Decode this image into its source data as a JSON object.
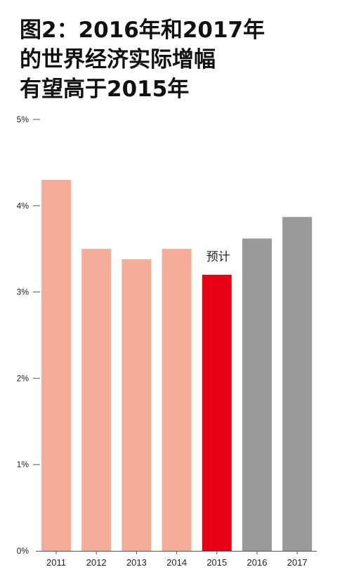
{
  "title_lines": [
    "图2：2016年和2017年",
    "的世界经济实际增幅",
    "有望高于2015年"
  ],
  "chart_data": {
    "type": "bar",
    "title": "图2：2016年和2017年的世界经济实际增幅有望高于2015年",
    "categories": [
      "2011",
      "2012",
      "2013",
      "2014",
      "2015",
      "2016",
      "2017"
    ],
    "values": [
      4.3,
      3.5,
      3.38,
      3.5,
      3.2,
      3.62,
      3.87
    ],
    "unit": "%",
    "ylim": [
      0,
      5
    ],
    "yticks": [
      "0%",
      "1%",
      "2%",
      "3%",
      "4%",
      "5%"
    ],
    "grid": false,
    "annotations": [
      {
        "text": "预计",
        "category": "2015"
      }
    ],
    "colors": {
      "past": "#f5ad97",
      "current": "#e60012",
      "forecast": "#9a9a9a",
      "axis": "#555555"
    },
    "bar_color_groups": [
      "past",
      "past",
      "past",
      "past",
      "current",
      "forecast",
      "forecast"
    ]
  }
}
